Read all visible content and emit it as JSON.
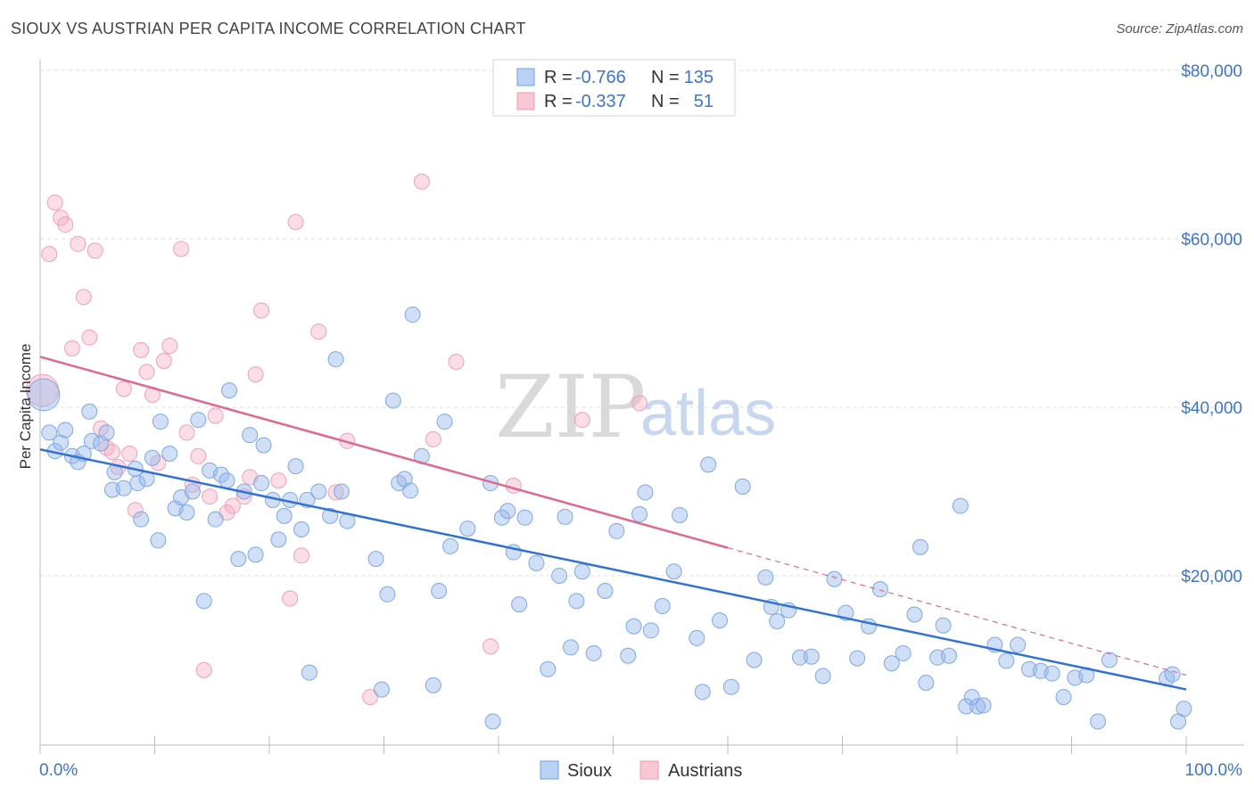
{
  "header": {
    "title": "SIOUX VS AUSTRIAN PER CAPITA INCOME CORRELATION CHART",
    "source": "Source: ZipAtlas.com"
  },
  "watermark": {
    "part1": "ZIP",
    "part2": "atlas"
  },
  "stats": [
    {
      "r_label": "R =",
      "r_value": "-0.766",
      "n_label": "N =",
      "n_value": "135"
    },
    {
      "r_label": "R =",
      "r_value": "-0.337",
      "n_label": "N =",
      "n_value": "51"
    }
  ],
  "chart_data": {
    "type": "scatter",
    "title": "SIOUX VS AUSTRIAN PER CAPITA INCOME CORRELATION CHART",
    "xlabel": "",
    "ylabel": "Per Capita Income",
    "xlim": [
      0,
      100
    ],
    "ylim": [
      0,
      82000
    ],
    "x_tick_labels": [
      "0.0%",
      "100.0%"
    ],
    "y_ticks": [
      20000,
      40000,
      60000,
      80000
    ],
    "y_tick_labels": [
      "$20,000",
      "$40,000",
      "$60,000",
      "$80,000"
    ],
    "grid": true,
    "legend_position": "bottom-center",
    "colors": {
      "sioux": "#6f9fe0",
      "sioux_line": "#2f72d0",
      "austrians": "#f09ab4",
      "austrians_line": "#e0688f"
    },
    "series": [
      {
        "name": "Sioux",
        "trend": {
          "x0": 0,
          "y0": 35000,
          "x1": 100,
          "y1": 6500,
          "dashed_from": null
        },
        "points": [
          [
            0.3,
            41500
          ],
          [
            0.8,
            37000
          ],
          [
            1.3,
            34800
          ],
          [
            1.8,
            35800
          ],
          [
            2.2,
            37300
          ],
          [
            2.8,
            34200
          ],
          [
            3.3,
            33500
          ],
          [
            3.8,
            34500
          ],
          [
            4.3,
            39500
          ],
          [
            4.5,
            36000
          ],
          [
            5.3,
            35700
          ],
          [
            5.8,
            37000
          ],
          [
            6.3,
            30200
          ],
          [
            6.5,
            32300
          ],
          [
            7.3,
            30400
          ],
          [
            8.3,
            32700
          ],
          [
            8.5,
            31000
          ],
          [
            8.8,
            26700
          ],
          [
            9.3,
            31500
          ],
          [
            9.8,
            34000
          ],
          [
            10.3,
            24200
          ],
          [
            10.5,
            38300
          ],
          [
            11.3,
            34500
          ],
          [
            11.8,
            28000
          ],
          [
            12.3,
            29300
          ],
          [
            12.8,
            27500
          ],
          [
            13.3,
            30000
          ],
          [
            13.8,
            38500
          ],
          [
            14.3,
            17000
          ],
          [
            14.8,
            32500
          ],
          [
            15.3,
            26700
          ],
          [
            15.8,
            32000
          ],
          [
            16.3,
            31300
          ],
          [
            16.5,
            42000
          ],
          [
            17.3,
            22000
          ],
          [
            17.8,
            30000
          ],
          [
            18.3,
            36700
          ],
          [
            18.8,
            22500
          ],
          [
            19.3,
            31000
          ],
          [
            19.5,
            35500
          ],
          [
            20.3,
            29000
          ],
          [
            20.8,
            24300
          ],
          [
            21.3,
            27100
          ],
          [
            21.8,
            29000
          ],
          [
            22.3,
            33000
          ],
          [
            22.8,
            25500
          ],
          [
            23.3,
            29000
          ],
          [
            23.5,
            8500
          ],
          [
            24.3,
            30000
          ],
          [
            25.3,
            27100
          ],
          [
            25.8,
            45700
          ],
          [
            26.3,
            30000
          ],
          [
            26.8,
            26500
          ],
          [
            29.3,
            22000
          ],
          [
            29.8,
            6500
          ],
          [
            30.3,
            17800
          ],
          [
            30.8,
            40800
          ],
          [
            31.3,
            31000
          ],
          [
            31.8,
            31500
          ],
          [
            32.3,
            30100
          ],
          [
            32.5,
            51000
          ],
          [
            33.3,
            34200
          ],
          [
            34.3,
            7000
          ],
          [
            34.8,
            18200
          ],
          [
            35.3,
            38300
          ],
          [
            35.8,
            23500
          ],
          [
            37.3,
            25600
          ],
          [
            39.3,
            31000
          ],
          [
            39.5,
            2700
          ],
          [
            40.3,
            26900
          ],
          [
            40.8,
            27700
          ],
          [
            41.3,
            22800
          ],
          [
            41.8,
            16600
          ],
          [
            42.3,
            26900
          ],
          [
            43.3,
            21500
          ],
          [
            44.3,
            8900
          ],
          [
            45.3,
            20000
          ],
          [
            45.8,
            27000
          ],
          [
            46.3,
            11500
          ],
          [
            46.8,
            17000
          ],
          [
            47.3,
            20500
          ],
          [
            48.3,
            10800
          ],
          [
            49.3,
            18200
          ],
          [
            50.3,
            25300
          ],
          [
            51.3,
            10500
          ],
          [
            51.8,
            14000
          ],
          [
            52.3,
            27300
          ],
          [
            52.8,
            29900
          ],
          [
            53.3,
            13500
          ],
          [
            54.3,
            16400
          ],
          [
            55.3,
            20500
          ],
          [
            55.8,
            27200
          ],
          [
            57.3,
            12600
          ],
          [
            57.8,
            6200
          ],
          [
            58.3,
            33200
          ],
          [
            59.3,
            14700
          ],
          [
            60.3,
            6800
          ],
          [
            61.3,
            30600
          ],
          [
            62.3,
            10000
          ],
          [
            63.3,
            19800
          ],
          [
            63.8,
            16300
          ],
          [
            64.3,
            14600
          ],
          [
            65.3,
            15900
          ],
          [
            66.3,
            10300
          ],
          [
            67.3,
            10400
          ],
          [
            68.3,
            8100
          ],
          [
            69.3,
            19600
          ],
          [
            70.3,
            15600
          ],
          [
            71.3,
            10200
          ],
          [
            72.3,
            14000
          ],
          [
            73.3,
            18400
          ],
          [
            74.3,
            9600
          ],
          [
            75.3,
            10800
          ],
          [
            76.3,
            15400
          ],
          [
            76.8,
            23400
          ],
          [
            77.3,
            7300
          ],
          [
            78.3,
            10300
          ],
          [
            78.8,
            14100
          ],
          [
            79.3,
            10500
          ],
          [
            80.3,
            28300
          ],
          [
            80.8,
            4500
          ],
          [
            81.3,
            5600
          ],
          [
            81.8,
            4500
          ],
          [
            82.3,
            4600
          ],
          [
            83.3,
            11800
          ],
          [
            84.3,
            9900
          ],
          [
            85.3,
            11800
          ],
          [
            86.3,
            8900
          ],
          [
            87.3,
            8700
          ],
          [
            88.3,
            8400
          ],
          [
            89.3,
            5600
          ],
          [
            90.3,
            7900
          ],
          [
            91.3,
            8200
          ],
          [
            92.3,
            2700
          ],
          [
            93.3,
            10000
          ],
          [
            98.3,
            7800
          ],
          [
            98.8,
            8300
          ],
          [
            99.3,
            2700
          ],
          [
            99.8,
            4200
          ]
        ]
      },
      {
        "name": "Austrians",
        "trend": {
          "x0": 0,
          "y0": 46000,
          "x1": 100,
          "y1": 8200,
          "dashed_from": 60
        },
        "points": [
          [
            0.2,
            42000
          ],
          [
            0.8,
            58200
          ],
          [
            1.3,
            64300
          ],
          [
            1.8,
            62500
          ],
          [
            2.2,
            61700
          ],
          [
            2.8,
            47000
          ],
          [
            3.3,
            59400
          ],
          [
            3.8,
            53100
          ],
          [
            4.3,
            48300
          ],
          [
            4.8,
            58600
          ],
          [
            5.3,
            37500
          ],
          [
            5.8,
            35200
          ],
          [
            6.3,
            34700
          ],
          [
            6.8,
            32900
          ],
          [
            7.3,
            42200
          ],
          [
            7.8,
            34500
          ],
          [
            8.3,
            27800
          ],
          [
            8.8,
            46800
          ],
          [
            9.3,
            44200
          ],
          [
            9.8,
            41500
          ],
          [
            10.3,
            33400
          ],
          [
            10.8,
            45500
          ],
          [
            11.3,
            47300
          ],
          [
            12.3,
            58800
          ],
          [
            12.8,
            37000
          ],
          [
            13.3,
            30800
          ],
          [
            13.8,
            34200
          ],
          [
            14.3,
            8800
          ],
          [
            14.8,
            29400
          ],
          [
            15.3,
            39000
          ],
          [
            16.3,
            27500
          ],
          [
            16.8,
            28300
          ],
          [
            17.8,
            29400
          ],
          [
            18.3,
            31700
          ],
          [
            18.8,
            43900
          ],
          [
            19.3,
            51500
          ],
          [
            20.8,
            31300
          ],
          [
            21.8,
            17300
          ],
          [
            22.3,
            62000
          ],
          [
            22.8,
            22400
          ],
          [
            24.3,
            49000
          ],
          [
            25.8,
            29900
          ],
          [
            26.8,
            36000
          ],
          [
            28.8,
            5600
          ],
          [
            33.3,
            66800
          ],
          [
            34.3,
            36200
          ],
          [
            36.3,
            45400
          ],
          [
            39.3,
            11600
          ],
          [
            41.3,
            30700
          ],
          [
            47.3,
            38500
          ],
          [
            52.3,
            40500
          ]
        ]
      }
    ]
  },
  "legend": {
    "items": [
      "Sioux",
      "Austrians"
    ]
  }
}
